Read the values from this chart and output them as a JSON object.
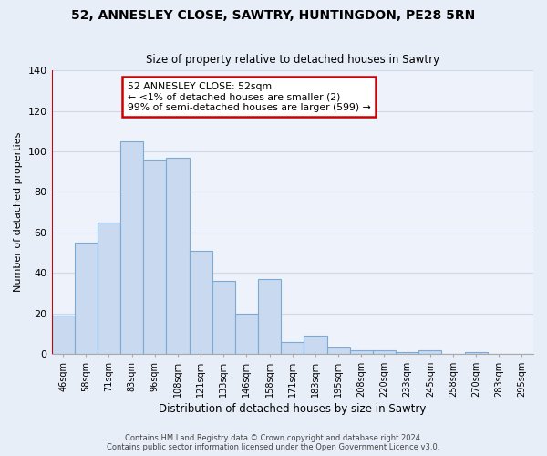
{
  "title": "52, ANNESLEY CLOSE, SAWTRY, HUNTINGDON, PE28 5RN",
  "subtitle": "Size of property relative to detached houses in Sawtry",
  "xlabel": "Distribution of detached houses by size in Sawtry",
  "ylabel": "Number of detached properties",
  "categories": [
    "46sqm",
    "58sqm",
    "71sqm",
    "83sqm",
    "96sqm",
    "108sqm",
    "121sqm",
    "133sqm",
    "146sqm",
    "158sqm",
    "171sqm",
    "183sqm",
    "195sqm",
    "208sqm",
    "220sqm",
    "233sqm",
    "245sqm",
    "258sqm",
    "270sqm",
    "283sqm",
    "295sqm"
  ],
  "values": [
    19,
    55,
    65,
    105,
    96,
    97,
    51,
    36,
    20,
    37,
    6,
    9,
    3,
    2,
    2,
    1,
    2,
    0,
    1,
    0,
    0
  ],
  "bar_fill_color": "#c8d9f0",
  "bar_edge_color": "#7baad4",
  "ylim": [
    0,
    140
  ],
  "annotation_title": "52 ANNESLEY CLOSE: 52sqm",
  "annotation_line2": "← <1% of detached houses are smaller (2)",
  "annotation_line3": "99% of semi-detached houses are larger (599) →",
  "annotation_box_color": "#ffffff",
  "annotation_box_edge_color": "#cc0000",
  "marker_line_color": "#cc0000",
  "background_color": "#e8eef8",
  "plot_bg_color": "#eef2fa",
  "grid_color": "#d0d8e8",
  "footer_line1": "Contains HM Land Registry data © Crown copyright and database right 2024.",
  "footer_line2": "Contains public sector information licensed under the Open Government Licence v3.0."
}
